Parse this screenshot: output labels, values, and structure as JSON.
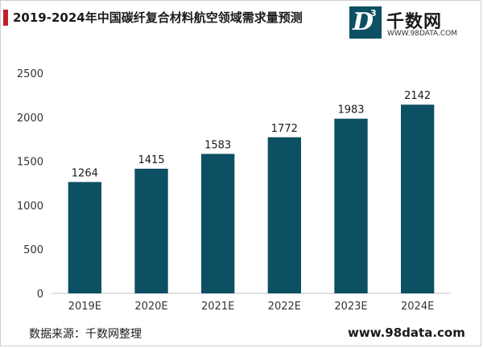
{
  "header": {
    "title": "2019-2024年中国碳纤复合材料航空领域需求量预测"
  },
  "logo": {
    "mark_letter": "D",
    "mark_superscript": "3",
    "name": "千数网",
    "url": "WWW.98DATA.COM"
  },
  "footer": {
    "source": "数据来源：千数网整理",
    "site": "www.98data.com"
  },
  "colors": {
    "bar": "#0d4f63",
    "accent": "#c0202a"
  },
  "chart_data": {
    "type": "bar",
    "categories": [
      "2019E",
      "2020E",
      "2021E",
      "2022E",
      "2023E",
      "2024E"
    ],
    "values": [
      1264,
      1415,
      1583,
      1772,
      1983,
      2142
    ],
    "ylim": [
      0,
      2500
    ],
    "yticks": [
      0,
      500,
      1000,
      1500,
      2000,
      2500
    ],
    "grid": false,
    "legend": "none",
    "data_labels": true
  }
}
